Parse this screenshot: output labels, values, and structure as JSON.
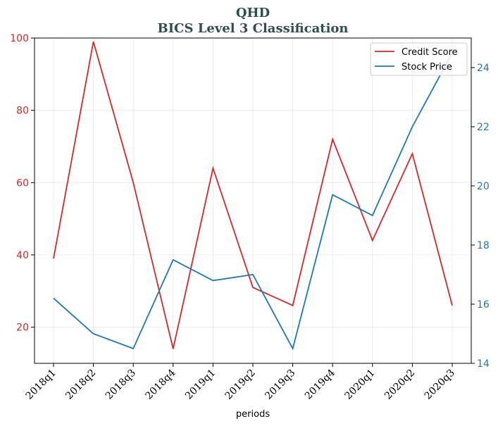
{
  "chart_data": {
    "type": "line",
    "title": "QHD",
    "subtitle": "BICS Level 3 Classification",
    "title_color": "#2f4f4f",
    "xlabel": "periods",
    "categories": [
      "2018q1",
      "2018q2",
      "2018q3",
      "2018q4",
      "2019q1",
      "2019q2",
      "2019q3",
      "2019q4",
      "2020q1",
      "2020q2",
      "2020q3"
    ],
    "series": [
      {
        "name": "Credit Score",
        "axis": "left",
        "color": "#d62728",
        "values": [
          39,
          99,
          60,
          14,
          64,
          31,
          26,
          72,
          44,
          68,
          26
        ]
      },
      {
        "name": "Stock Price",
        "axis": "right",
        "color": "#1f77b4",
        "values": [
          16.2,
          15.0,
          14.5,
          17.5,
          16.8,
          17.0,
          14.5,
          19.7,
          19.0,
          22.0,
          24.5
        ]
      }
    ],
    "y_left": {
      "ylim": [
        10,
        100
      ],
      "ticks": [
        20,
        40,
        60,
        80,
        100
      ],
      "color": "#d62728"
    },
    "y_right": {
      "ylim": [
        14,
        25
      ],
      "ticks": [
        14,
        16,
        18,
        20,
        22,
        24
      ],
      "color": "#1f77b4"
    },
    "grid": true,
    "legend_position": "top-right"
  }
}
